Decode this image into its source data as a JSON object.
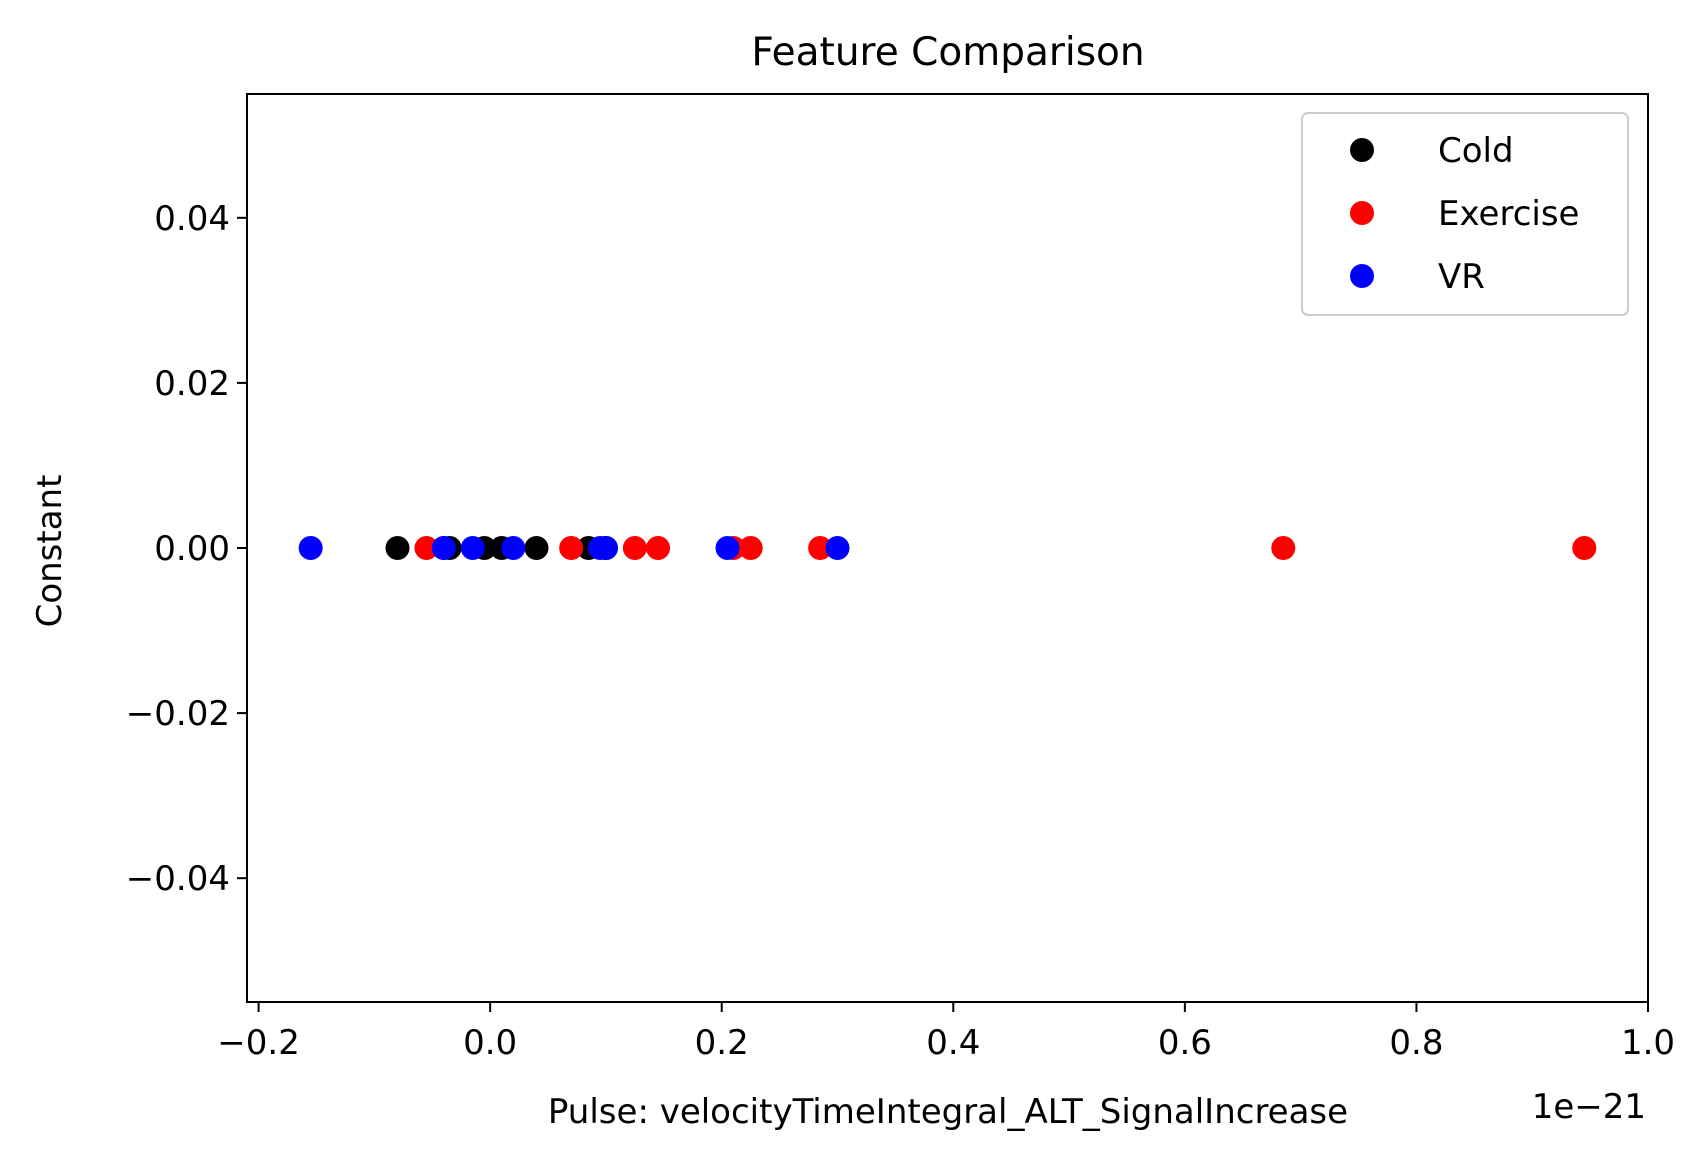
{
  "chart_data": {
    "type": "scatter",
    "title": "Feature Comparison",
    "xlabel": "Pulse: velocityTimeIntegral_ALT_SignalIncrease",
    "ylabel": "Constant",
    "x_offset_text": "1e−21",
    "xlim": [
      -0.21,
      1.0
    ],
    "ylim": [
      -0.055,
      0.055
    ],
    "xticks": [
      {
        "value": -0.2,
        "label": "−0.2"
      },
      {
        "value": 0.0,
        "label": "0.0"
      },
      {
        "value": 0.2,
        "label": "0.2"
      },
      {
        "value": 0.4,
        "label": "0.4"
      },
      {
        "value": 0.6,
        "label": "0.6"
      },
      {
        "value": 0.8,
        "label": "0.8"
      },
      {
        "value": 1.0,
        "label": "1.0"
      }
    ],
    "yticks": [
      {
        "value": 0.04,
        "label": "0.04"
      },
      {
        "value": 0.02,
        "label": "0.02"
      },
      {
        "value": 0.0,
        "label": "0.00"
      },
      {
        "value": -0.02,
        "label": "−0.02"
      },
      {
        "value": -0.04,
        "label": "−0.04"
      }
    ],
    "grid": false,
    "legend_position": "top-right",
    "series": [
      {
        "name": "Cold",
        "color": "#000000",
        "x": [
          -0.08,
          -0.04,
          -0.035,
          -0.005,
          0.01,
          0.04,
          0.085,
          0.1
        ],
        "y": [
          0,
          0,
          0,
          0,
          0,
          0,
          0,
          0
        ]
      },
      {
        "name": "Exercise",
        "color": "#ff0000",
        "x": [
          -0.055,
          0.07,
          0.125,
          0.145,
          0.21,
          0.225,
          0.285,
          0.685,
          0.945
        ],
        "y": [
          0,
          0,
          0,
          0,
          0,
          0,
          0,
          0,
          0
        ]
      },
      {
        "name": "VR",
        "color": "#0000ff",
        "x": [
          -0.155,
          -0.04,
          -0.015,
          0.02,
          0.095,
          0.1,
          0.205,
          0.3
        ],
        "y": [
          0,
          0,
          0,
          0,
          0,
          0,
          0,
          0
        ]
      }
    ]
  }
}
